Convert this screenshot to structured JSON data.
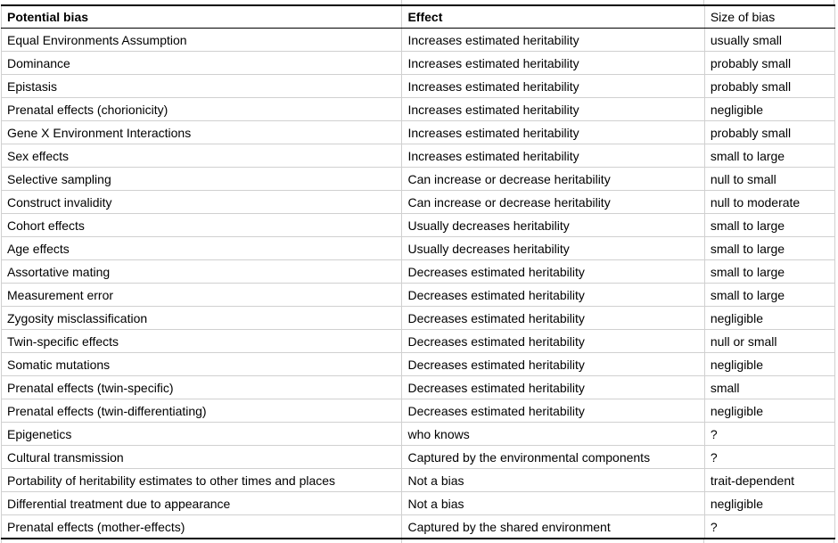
{
  "colors": {
    "grid": "#d0d0d0",
    "border": "#000000",
    "text": "#000000",
    "background": "#ffffff"
  },
  "chart_data": {
    "type": "table",
    "columns": [
      {
        "label": "Potential bias",
        "bold": true
      },
      {
        "label": "Effect",
        "bold": true
      },
      {
        "label": "Size of bias",
        "bold": false
      }
    ],
    "rows": [
      {
        "bias": "Equal Environments Assumption",
        "effect": "Increases estimated heritability",
        "size": "usually small"
      },
      {
        "bias": "Dominance",
        "effect": "Increases estimated heritability",
        "size": "probably small"
      },
      {
        "bias": "Epistasis",
        "effect": "Increases estimated heritability",
        "size": "probably small"
      },
      {
        "bias": "Prenatal effects (chorionicity)",
        "effect": "Increases estimated heritability",
        "size": "negligible"
      },
      {
        "bias": "Gene X Environment Interactions",
        "effect": "Increases estimated heritability",
        "size": "probably small"
      },
      {
        "bias": "Sex effects",
        "effect": "Increases estimated heritability",
        "size": "small to large"
      },
      {
        "bias": "Selective sampling",
        "effect": "Can increase or decrease heritability",
        "size": "null to small"
      },
      {
        "bias": "Construct invalidity",
        "effect": "Can increase or decrease heritability",
        "size": "null to moderate"
      },
      {
        "bias": "Cohort effects",
        "effect": "Usually decreases heritability",
        "size": "small to large"
      },
      {
        "bias": "Age effects",
        "effect": "Usually decreases heritability",
        "size": "small to large"
      },
      {
        "bias": "Assortative mating",
        "effect": "Decreases estimated heritability",
        "size": "small to large"
      },
      {
        "bias": "Measurement error",
        "effect": "Decreases estimated heritability",
        "size": "small to large"
      },
      {
        "bias": "Zygosity misclassification",
        "effect": "Decreases estimated heritability",
        "size": "negligible"
      },
      {
        "bias": "Twin-specific effects",
        "effect": "Decreases estimated heritability",
        "size": "null or small"
      },
      {
        "bias": "Somatic mutations",
        "effect": "Decreases estimated heritability",
        "size": "negligible"
      },
      {
        "bias": "Prenatal effects (twin-specific)",
        "effect": "Decreases estimated heritability",
        "size": "small"
      },
      {
        "bias": "Prenatal effects (twin-differentiating)",
        "effect": "Decreases estimated heritability",
        "size": "negligible"
      },
      {
        "bias": "Epigenetics",
        "effect": "who knows",
        "size": "?"
      },
      {
        "bias": "Cultural transmission",
        "effect": "Captured by the environmental components",
        "size": "?"
      },
      {
        "bias": "Portability of heritability estimates to other times and places",
        "effect": "Not a bias",
        "size": "trait-dependent"
      },
      {
        "bias": "Differential treatment due to appearance",
        "effect": "Not a bias",
        "size": "negligible"
      },
      {
        "bias": "Prenatal effects (mother-effects)",
        "effect": "Captured by the shared environment",
        "size": "?"
      }
    ]
  }
}
